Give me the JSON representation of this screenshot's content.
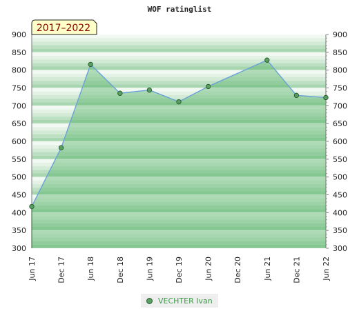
{
  "chart_data": {
    "type": "area",
    "title": "WOF ratinglist",
    "period_label": "2017–2022",
    "xlabel": "",
    "ylabel": "",
    "ylim": [
      300,
      900
    ],
    "yticks": [
      300,
      350,
      400,
      450,
      500,
      550,
      600,
      650,
      700,
      750,
      800,
      850,
      900
    ],
    "xticks": [
      "Jun 17",
      "Dec 17",
      "Jun 18",
      "Dec 18",
      "Jun 19",
      "Dec 19",
      "Jun 20",
      "Dec 20",
      "Jun 21",
      "Dec 21",
      "Jun 22"
    ],
    "grid": true,
    "legend_position": "bottom-center",
    "series": [
      {
        "name": "VECHTER Ivan",
        "points": [
          {
            "x": "Jun 17",
            "y": 417
          },
          {
            "x": "Dec 17",
            "y": 582
          },
          {
            "x": "Jun 18",
            "y": 816
          },
          {
            "x": "Dec 18",
            "y": 735
          },
          {
            "x": "Jun 19",
            "y": 744
          },
          {
            "x": "Dec 19",
            "y": 711
          },
          {
            "x": "Jun 20",
            "y": 754
          },
          {
            "x": "Jun 21",
            "y": 828
          },
          {
            "x": "Dec 21",
            "y": 729
          },
          {
            "x": "Jun 22",
            "y": 723
          }
        ]
      }
    ],
    "colors": {
      "line": "#6aa0d8",
      "area": "#5bb56c",
      "marker": "#5aa063",
      "marker_stroke": "#2b5e30",
      "band_dark": "#b5dcbc",
      "band_light": "#e9f5eb"
    }
  }
}
